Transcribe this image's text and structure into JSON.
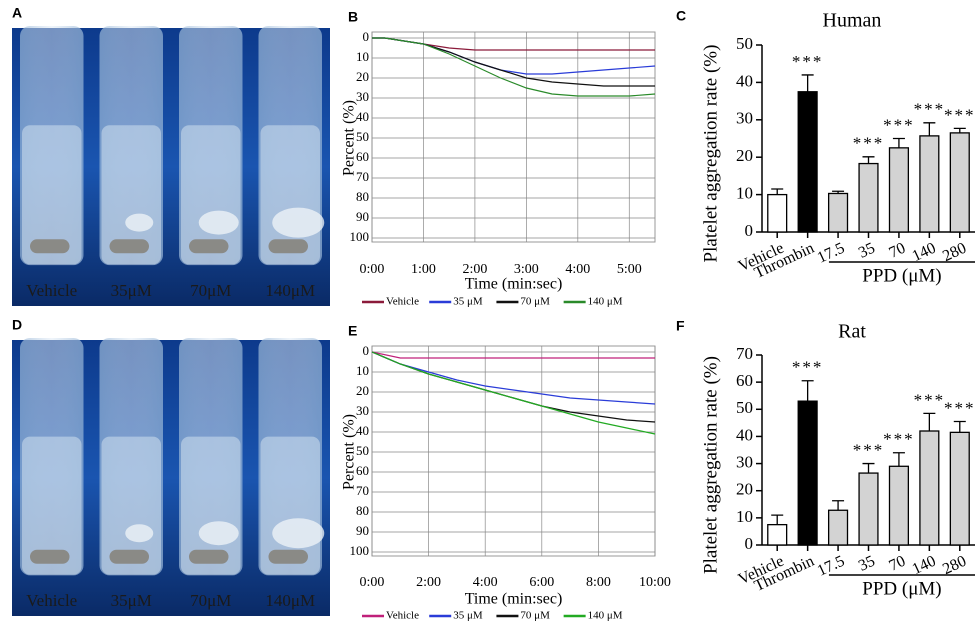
{
  "photos": [
    {
      "label": "A",
      "captions": [
        "Vehicle",
        "35μM",
        "70μM",
        "140μM"
      ]
    },
    {
      "label": "D",
      "captions": [
        "Vehicle",
        "35μM",
        "70μM",
        "140μM"
      ]
    }
  ],
  "chart_data": [
    {
      "type": "line",
      "label": "B",
      "xlabel": "Time (min:sec)",
      "ylabel": "Percent (%)",
      "x": [
        0,
        15,
        30,
        60,
        90,
        120,
        150,
        180,
        210,
        240,
        270,
        300,
        330
      ],
      "xlim": [
        0,
        330
      ],
      "xticks": [
        {
          "value": 0,
          "label": "0:00"
        },
        {
          "value": 60,
          "label": "1:00"
        },
        {
          "value": 120,
          "label": "2:00"
        },
        {
          "value": 180,
          "label": "3:00"
        },
        {
          "value": 240,
          "label": "4:00"
        },
        {
          "value": 300,
          "label": "5:00"
        }
      ],
      "ylim": [
        100,
        0
      ],
      "yticks": [
        0,
        10,
        20,
        30,
        40,
        50,
        60,
        70,
        80,
        90,
        100
      ],
      "grid": true,
      "series": [
        {
          "name": "Vehicle",
          "color": "#8b1a3a",
          "values": [
            0,
            0,
            1,
            3,
            5,
            6,
            6,
            6,
            6,
            6,
            6,
            6,
            6
          ]
        },
        {
          "name": "35 μM",
          "color": "#2a3cd8",
          "values": [
            0,
            0,
            1,
            3,
            7,
            12,
            16,
            18,
            18,
            17,
            16,
            15,
            14
          ]
        },
        {
          "name": "70 μM",
          "color": "#111111",
          "values": [
            0,
            0,
            1,
            3,
            7,
            12,
            16,
            20,
            22,
            23,
            24,
            24,
            24
          ]
        },
        {
          "name": "140 μM",
          "color": "#2a8a2a",
          "values": [
            0,
            0,
            1,
            3,
            8,
            14,
            20,
            25,
            28,
            29,
            29,
            29,
            28
          ]
        }
      ]
    },
    {
      "type": "bar",
      "label": "C",
      "title": "Human",
      "ylabel": "Platelet aggregation rate (%)",
      "group_label": "PPD (μM)",
      "categories": [
        "Vehicle",
        "Thrombin",
        "17.5",
        "35",
        "70",
        "140",
        "280"
      ],
      "values": [
        10,
        37.5,
        10.3,
        18.3,
        22.5,
        25.7,
        26.5
      ],
      "errors": [
        1.5,
        4.5,
        0.6,
        1.8,
        2.5,
        3.5,
        1.2
      ],
      "bar_colors": [
        "#ffffff",
        "#000000",
        "#d3d3d3",
        "#d3d3d3",
        "#d3d3d3",
        "#d3d3d3",
        "#d3d3d3"
      ],
      "annotations": [
        null,
        "***",
        null,
        "***",
        "***",
        "***",
        "***"
      ],
      "ylim": [
        0,
        50
      ],
      "yticks": [
        0,
        10,
        20,
        30,
        40,
        50
      ]
    },
    {
      "type": "line",
      "label": "E",
      "xlabel": "Time (min:sec)",
      "ylabel": "Percent (%)",
      "x": [
        0,
        60,
        120,
        180,
        240,
        300,
        360,
        420,
        480,
        540,
        600
      ],
      "xlim": [
        0,
        600
      ],
      "xticks": [
        {
          "value": 0,
          "label": "0:00"
        },
        {
          "value": 120,
          "label": "2:00"
        },
        {
          "value": 240,
          "label": "4:00"
        },
        {
          "value": 360,
          "label": "6:00"
        },
        {
          "value": 480,
          "label": "8:00"
        },
        {
          "value": 600,
          "label": "10:00"
        }
      ],
      "ylim": [
        100,
        0
      ],
      "yticks": [
        0,
        10,
        20,
        30,
        40,
        50,
        60,
        70,
        80,
        90,
        100
      ],
      "grid": true,
      "series": [
        {
          "name": "Vehicle",
          "color": "#c0207a",
          "values": [
            0,
            3,
            3,
            3,
            3,
            3,
            3,
            3,
            3,
            3,
            3
          ]
        },
        {
          "name": "35 μM",
          "color": "#2a3cd8",
          "values": [
            0,
            6,
            10,
            14,
            17,
            19,
            21,
            23,
            24,
            25,
            26
          ]
        },
        {
          "name": "70 μM",
          "color": "#111111",
          "values": [
            0,
            6,
            11,
            15,
            19,
            23,
            27,
            30,
            32,
            34,
            35
          ]
        },
        {
          "name": "140 μM",
          "color": "#22aa22",
          "values": [
            0,
            6,
            11,
            15,
            19,
            23,
            27,
            31,
            35,
            38,
            41
          ]
        }
      ]
    },
    {
      "type": "bar",
      "label": "F",
      "title": "Rat",
      "ylabel": "Platelet aggregation rate (%)",
      "group_label": "PPD (μM)",
      "categories": [
        "Vehicle",
        "Thrombin",
        "17.5",
        "35",
        "70",
        "140",
        "280"
      ],
      "values": [
        7.5,
        53,
        12.8,
        26.5,
        29,
        42,
        41.5
      ],
      "errors": [
        3.5,
        7.5,
        3.5,
        3.5,
        5,
        6.5,
        4
      ],
      "bar_colors": [
        "#ffffff",
        "#000000",
        "#d3d3d3",
        "#d3d3d3",
        "#d3d3d3",
        "#d3d3d3",
        "#d3d3d3"
      ],
      "annotations": [
        null,
        "***",
        null,
        "***",
        "***",
        "***",
        "***"
      ],
      "ylim": [
        0,
        70
      ],
      "yticks": [
        0,
        10,
        20,
        30,
        40,
        50,
        60,
        70
      ]
    }
  ]
}
